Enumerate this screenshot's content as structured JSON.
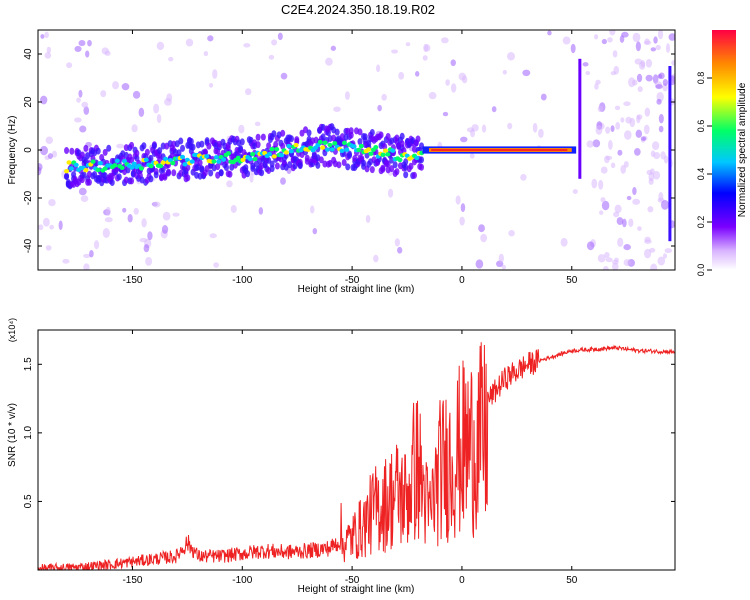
{
  "title": "C2E4.2024.350.18.19.R02",
  "chart_data": [
    {
      "type": "heatmap",
      "xlabel": "Height of straight line (km)",
      "ylabel": "Frequency (Hz)",
      "xlim": [
        -193,
        97
      ],
      "ylim": [
        -50,
        50
      ],
      "xticks": [
        -150,
        -100,
        -50,
        0,
        50
      ],
      "yticks": [
        -40,
        -20,
        0,
        20,
        40
      ],
      "colorbar": {
        "label": "Normalized spectral amplitude",
        "range": [
          0,
          1
        ],
        "ticks": [
          "0.0",
          "0.2",
          "0.4",
          "0.6",
          "0.8"
        ]
      },
      "ridge": {
        "x": [
          -172,
          -150,
          -125,
          -100,
          -80,
          -60,
          -45,
          -30,
          -20,
          -15,
          0,
          20,
          40,
          50,
          53
        ],
        "y": [
          -7,
          -6,
          -4,
          -3,
          0,
          2,
          0,
          -2,
          -3,
          0,
          0,
          0,
          0,
          0,
          0
        ]
      },
      "grid": false
    },
    {
      "type": "line",
      "xlabel": "Height of straight line (km)",
      "ylabel": "SNR (10 * v/v)",
      "scale_label": "(x10⁴)",
      "xlim": [
        -193,
        97
      ],
      "ylim": [
        0,
        1.75
      ],
      "xticks": [
        -150,
        -100,
        -50,
        0,
        50
      ],
      "yticks": [
        "0.5",
        "1.0",
        "1.5"
      ],
      "series_color": "#ee2222",
      "x": [
        -193,
        -175,
        -160,
        -150,
        -140,
        -130,
        -125,
        -120,
        -110,
        -100,
        -90,
        -80,
        -70,
        -60,
        -55,
        -50,
        -45,
        -40,
        -35,
        -30,
        -25,
        -22,
        -20,
        -15,
        -10,
        -5,
        0,
        5,
        10,
        15,
        20,
        25,
        30,
        40,
        50,
        60,
        70,
        80,
        97
      ],
      "y": [
        0.01,
        0.02,
        0.04,
        0.06,
        0.08,
        0.1,
        0.2,
        0.1,
        0.1,
        0.12,
        0.14,
        0.13,
        0.14,
        0.16,
        0.22,
        0.3,
        0.4,
        0.55,
        0.6,
        0.7,
        0.65,
        0.9,
        0.95,
        0.5,
        0.9,
        1.0,
        1.1,
        1.15,
        1.2,
        1.3,
        1.4,
        1.45,
        1.5,
        1.55,
        1.6,
        1.61,
        1.62,
        1.6,
        1.59
      ]
    }
  ]
}
